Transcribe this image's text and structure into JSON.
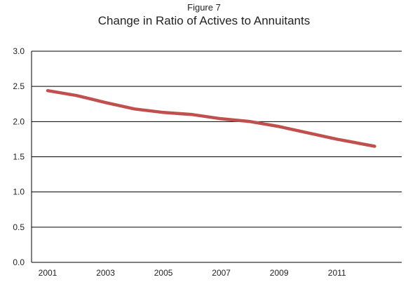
{
  "figure_number": "Figure 7",
  "chart_data": {
    "type": "line",
    "title": "Change in Ratio of Actives to Annuitants",
    "xlabel": "",
    "ylabel": "",
    "ylim": [
      0.0,
      3.0
    ],
    "y_ticks": [
      "0.0",
      "0.5",
      "1.0",
      "1.5",
      "2.0",
      "2.5",
      "3.0"
    ],
    "x_ticks": [
      "2001",
      "2003",
      "2005",
      "2007",
      "2009",
      "2011"
    ],
    "xlim": [
      2001,
      2012.5
    ],
    "grid": "horizontal",
    "colors": {
      "line": "#c0504d",
      "grid": "#000000"
    },
    "series": [
      {
        "x": [
          2001,
          2002,
          2003,
          2004,
          2005,
          2006,
          2007,
          2008,
          2009,
          2010,
          2011,
          2012.3
        ],
        "values": [
          2.44,
          2.37,
          2.27,
          2.18,
          2.13,
          2.1,
          2.04,
          2.0,
          1.93,
          1.84,
          1.75,
          1.65
        ]
      }
    ]
  }
}
